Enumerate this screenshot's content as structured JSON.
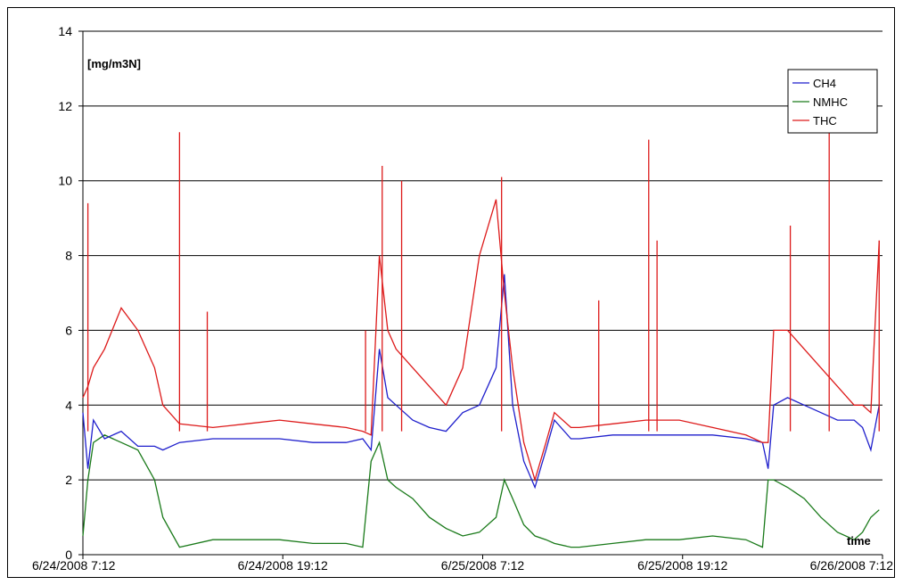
{
  "chart_data": {
    "type": "line",
    "ylabel": "[mg/m3N]",
    "xlabel": "time",
    "ylim": [
      0,
      14
    ],
    "yticks": [
      0,
      2,
      4,
      6,
      8,
      10,
      12,
      14
    ],
    "xlim": [
      "6/24/2008 7:12",
      "6/26/2008 7:12"
    ],
    "xticks": [
      "6/24/2008 7:12",
      "6/24/2008 19:12",
      "6/25/2008 7:12",
      "6/25/2008 19:12",
      "6/26/2008 7:12"
    ],
    "grid": "horizontal",
    "legend_position": "top-right",
    "series": [
      {
        "name": "CH4",
        "color": "#1f1fcc",
        "x": [
          "6/24/2008 7:12",
          "6/24/2008 7:30",
          "6/24/2008 7:50",
          "6/24/2008 8:30",
          "6/24/2008 9:30",
          "6/24/2008 10:30",
          "6/24/2008 11:30",
          "6/24/2008 12:00",
          "6/24/2008 13:00",
          "6/24/2008 15:00",
          "6/24/2008 17:00",
          "6/24/2008 19:00",
          "6/24/2008 21:00",
          "6/24/2008 23:00",
          "6/25/2008 0:00",
          "6/25/2008 0:30",
          "6/25/2008 1:00",
          "6/25/2008 1:30",
          "6/25/2008 2:00",
          "6/25/2008 3:00",
          "6/25/2008 4:00",
          "6/25/2008 5:00",
          "6/25/2008 6:00",
          "6/25/2008 7:00",
          "6/25/2008 8:00",
          "6/25/2008 8:30",
          "6/25/2008 9:00",
          "6/25/2008 9:40",
          "6/25/2008 10:20",
          "6/25/2008 11:00",
          "6/25/2008 11:30",
          "6/25/2008 12:30",
          "6/25/2008 13:00",
          "6/25/2008 15:00",
          "6/25/2008 17:00",
          "6/25/2008 19:00",
          "6/25/2008 21:00",
          "6/25/2008 23:00",
          "6/26/2008 0:00",
          "6/26/2008 0:20",
          "6/26/2008 0:40",
          "6/26/2008 1:30",
          "6/26/2008 2:30",
          "6/26/2008 3:30",
          "6/26/2008 4:30",
          "6/26/2008 5:30",
          "6/26/2008 6:00",
          "6/26/2008 6:30",
          "6/26/2008 7:00"
        ],
        "y": [
          3.8,
          2.3,
          3.6,
          3.1,
          3.3,
          2.9,
          2.9,
          2.8,
          3.0,
          3.1,
          3.1,
          3.1,
          3.0,
          3.0,
          3.1,
          2.8,
          5.5,
          4.2,
          4.0,
          3.6,
          3.4,
          3.3,
          3.8,
          4.0,
          5.0,
          7.5,
          4.0,
          2.5,
          1.8,
          2.8,
          3.6,
          3.1,
          3.1,
          3.2,
          3.2,
          3.2,
          3.2,
          3.1,
          3.0,
          2.3,
          4.0,
          4.2,
          4.0,
          3.8,
          3.6,
          3.6,
          3.4,
          2.8,
          4.0
        ]
      },
      {
        "name": "NMHC",
        "color": "#1a7a1a",
        "x": [
          "6/24/2008 7:12",
          "6/24/2008 7:30",
          "6/24/2008 7:50",
          "6/24/2008 8:30",
          "6/24/2008 9:30",
          "6/24/2008 10:30",
          "6/24/2008 11:30",
          "6/24/2008 12:00",
          "6/24/2008 13:00",
          "6/24/2008 15:00",
          "6/24/2008 17:00",
          "6/24/2008 19:00",
          "6/24/2008 21:00",
          "6/24/2008 23:00",
          "6/25/2008 0:00",
          "6/25/2008 0:30",
          "6/25/2008 1:00",
          "6/25/2008 1:30",
          "6/25/2008 2:00",
          "6/25/2008 3:00",
          "6/25/2008 4:00",
          "6/25/2008 5:00",
          "6/25/2008 6:00",
          "6/25/2008 7:00",
          "6/25/2008 8:00",
          "6/25/2008 8:30",
          "6/25/2008 9:00",
          "6/25/2008 9:40",
          "6/25/2008 10:20",
          "6/25/2008 11:00",
          "6/25/2008 11:30",
          "6/25/2008 12:30",
          "6/25/2008 13:00",
          "6/25/2008 15:00",
          "6/25/2008 17:00",
          "6/25/2008 19:00",
          "6/25/2008 21:00",
          "6/25/2008 23:00",
          "6/26/2008 0:00",
          "6/26/2008 0:20",
          "6/26/2008 0:40",
          "6/26/2008 1:30",
          "6/26/2008 2:30",
          "6/26/2008 3:30",
          "6/26/2008 4:30",
          "6/26/2008 5:30",
          "6/26/2008 6:00",
          "6/26/2008 6:30",
          "6/26/2008 7:00"
        ],
        "y": [
          0.5,
          2.0,
          3.0,
          3.2,
          3.0,
          2.8,
          2.0,
          1.0,
          0.2,
          0.4,
          0.4,
          0.4,
          0.3,
          0.3,
          0.2,
          2.5,
          3.0,
          2.0,
          1.8,
          1.5,
          1.0,
          0.7,
          0.5,
          0.6,
          1.0,
          2.0,
          1.5,
          0.8,
          0.5,
          0.4,
          0.3,
          0.2,
          0.2,
          0.3,
          0.4,
          0.4,
          0.5,
          0.4,
          0.2,
          2.0,
          2.0,
          1.8,
          1.5,
          1.0,
          0.6,
          0.4,
          0.6,
          1.0,
          1.2
        ]
      },
      {
        "name": "THC",
        "color": "#dd1a1a",
        "x": [
          "6/24/2008 7:12",
          "6/24/2008 7:30",
          "6/24/2008 7:50",
          "6/24/2008 8:30",
          "6/24/2008 9:30",
          "6/24/2008 10:30",
          "6/24/2008 11:30",
          "6/24/2008 12:00",
          "6/24/2008 13:00",
          "6/24/2008 15:00",
          "6/24/2008 17:00",
          "6/24/2008 19:00",
          "6/24/2008 21:00",
          "6/24/2008 23:00",
          "6/25/2008 0:00",
          "6/25/2008 0:30",
          "6/25/2008 1:00",
          "6/25/2008 1:30",
          "6/25/2008 2:00",
          "6/25/2008 3:00",
          "6/25/2008 4:00",
          "6/25/2008 5:00",
          "6/25/2008 6:00",
          "6/25/2008 7:00",
          "6/25/2008 8:00",
          "6/25/2008 8:30",
          "6/25/2008 9:00",
          "6/25/2008 9:40",
          "6/25/2008 10:20",
          "6/25/2008 11:00",
          "6/25/2008 11:30",
          "6/25/2008 12:30",
          "6/25/2008 13:00",
          "6/25/2008 15:00",
          "6/25/2008 17:00",
          "6/25/2008 19:00",
          "6/25/2008 21:00",
          "6/25/2008 23:00",
          "6/26/2008 0:00",
          "6/26/2008 0:20",
          "6/26/2008 0:40",
          "6/26/2008 1:30",
          "6/26/2008 2:30",
          "6/26/2008 3:30",
          "6/26/2008 4:30",
          "6/26/2008 5:30",
          "6/26/2008 6:00",
          "6/26/2008 6:30",
          "6/26/2008 7:00"
        ],
        "y": [
          4.2,
          4.5,
          5.0,
          5.5,
          6.6,
          6.0,
          5.0,
          4.0,
          3.5,
          3.4,
          3.5,
          3.6,
          3.5,
          3.4,
          3.3,
          3.2,
          8.0,
          6.0,
          5.5,
          5.0,
          4.5,
          4.0,
          5.0,
          8.0,
          9.5,
          7.0,
          5.0,
          3.0,
          2.0,
          3.0,
          3.8,
          3.4,
          3.4,
          3.5,
          3.6,
          3.6,
          3.4,
          3.2,
          3.0,
          3.0,
          6.0,
          6.0,
          5.5,
          5.0,
          4.5,
          4.0,
          4.0,
          3.8,
          8.4
        ]
      }
    ],
    "spikes": [
      {
        "series": "THC",
        "x": "6/24/2008 7:30",
        "y": 9.4
      },
      {
        "series": "THC",
        "x": "6/24/2008 13:00",
        "y": 11.3
      },
      {
        "series": "THC",
        "x": "6/24/2008 14:40",
        "y": 6.5
      },
      {
        "series": "THC",
        "x": "6/25/2008 0:10",
        "y": 6.0
      },
      {
        "series": "THC",
        "x": "6/25/2008 1:10",
        "y": 10.4
      },
      {
        "series": "THC",
        "x": "6/25/2008 2:20",
        "y": 10.0
      },
      {
        "series": "THC",
        "x": "6/25/2008 8:20",
        "y": 10.1
      },
      {
        "series": "THC",
        "x": "6/25/2008 14:10",
        "y": 6.8
      },
      {
        "series": "THC",
        "x": "6/25/2008 17:10",
        "y": 11.1
      },
      {
        "series": "THC",
        "x": "6/25/2008 17:40",
        "y": 8.4
      },
      {
        "series": "THC",
        "x": "6/26/2008 1:40",
        "y": 8.8
      },
      {
        "series": "THC",
        "x": "6/26/2008 4:00",
        "y": 12.8
      },
      {
        "series": "THC",
        "x": "6/26/2008 7:00",
        "y": 8.4
      }
    ]
  }
}
